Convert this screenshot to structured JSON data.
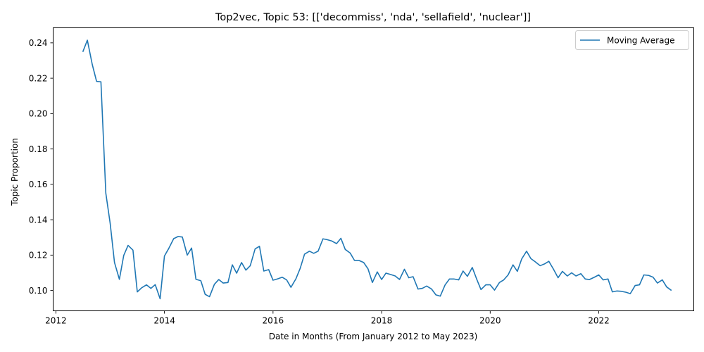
{
  "chart_data": {
    "type": "line",
    "title": "Top2vec, Topic 53: [['decommiss', 'nda', 'sellafield', 'nuclear']]",
    "xlabel": "Date in Months (From January 2012 to May 2023)",
    "ylabel": "Topic Proportion",
    "xlim": [
      2011.95,
      2023.75
    ],
    "ylim": [
      0.0885,
      0.2485
    ],
    "x_ticks": [
      2012,
      2014,
      2016,
      2018,
      2020,
      2022
    ],
    "x_tick_labels": [
      "2012",
      "2014",
      "2016",
      "2018",
      "2020",
      "2022"
    ],
    "y_ticks": [
      0.1,
      0.12,
      0.14,
      0.16,
      0.18,
      0.2,
      0.22,
      0.24
    ],
    "y_tick_labels": [
      "0.10",
      "0.12",
      "0.14",
      "0.16",
      "0.18",
      "0.20",
      "0.22",
      "0.24"
    ],
    "grid": false,
    "legend": {
      "position": "top-right",
      "entries": [
        "Moving Average"
      ]
    },
    "series": [
      {
        "name": "Moving Average",
        "color": "#1f77b4",
        "x": [
          2012.5,
          2012.58,
          2012.67,
          2012.75,
          2012.83,
          2012.92,
          2013.0,
          2013.08,
          2013.17,
          2013.25,
          2013.33,
          2013.42,
          2013.5,
          2013.58,
          2013.67,
          2013.75,
          2013.83,
          2013.92,
          2014.0,
          2014.08,
          2014.17,
          2014.25,
          2014.33,
          2014.42,
          2014.5,
          2014.58,
          2014.67,
          2014.75,
          2014.83,
          2014.92,
          2015.0,
          2015.08,
          2015.17,
          2015.25,
          2015.33,
          2015.42,
          2015.5,
          2015.58,
          2015.67,
          2015.75,
          2015.83,
          2015.92,
          2016.0,
          2016.08,
          2016.17,
          2016.25,
          2016.33,
          2016.42,
          2016.5,
          2016.58,
          2016.67,
          2016.75,
          2016.83,
          2016.92,
          2017.0,
          2017.08,
          2017.17,
          2017.25,
          2017.33,
          2017.42,
          2017.5,
          2017.58,
          2017.67,
          2017.75,
          2017.83,
          2017.92,
          2018.0,
          2018.08,
          2018.17,
          2018.25,
          2018.33,
          2018.42,
          2018.5,
          2018.58,
          2018.67,
          2018.75,
          2018.83,
          2018.92,
          2019.0,
          2019.08,
          2019.17,
          2019.25,
          2019.33,
          2019.42,
          2019.5,
          2019.58,
          2019.67,
          2019.75,
          2019.83,
          2019.92,
          2020.0,
          2020.08,
          2020.17,
          2020.25,
          2020.33,
          2020.42,
          2020.5,
          2020.58,
          2020.67,
          2020.75,
          2020.83,
          2020.92,
          2021.0,
          2021.08,
          2021.17,
          2021.25,
          2021.33,
          2021.42,
          2021.5,
          2021.58,
          2021.67,
          2021.75,
          2021.83,
          2021.92,
          2022.0,
          2022.08,
          2022.17,
          2022.25,
          2022.33,
          2022.42,
          2022.5,
          2022.58,
          2022.67,
          2022.75,
          2022.83,
          2022.92,
          2023.0,
          2023.08,
          2023.17,
          2023.25,
          2023.33
        ],
        "values": [
          0.2352,
          0.2415,
          0.2278,
          0.2182,
          0.218,
          0.155,
          0.138,
          0.1158,
          0.1063,
          0.1198,
          0.1255,
          0.1228,
          0.0992,
          0.1015,
          0.1032,
          0.1012,
          0.1033,
          0.0953,
          0.1195,
          0.1238,
          0.1293,
          0.1305,
          0.1302,
          0.12,
          0.124,
          0.1063,
          0.1055,
          0.0978,
          0.0965,
          0.1035,
          0.1062,
          0.1042,
          0.1045,
          0.1145,
          0.1098,
          0.1158,
          0.1115,
          0.114,
          0.1235,
          0.125,
          0.111,
          0.1118,
          0.1058,
          0.1065,
          0.1075,
          0.106,
          0.1018,
          0.1065,
          0.1125,
          0.1205,
          0.1222,
          0.121,
          0.1222,
          0.1292,
          0.1287,
          0.128,
          0.1265,
          0.1295,
          0.1232,
          0.1212,
          0.117,
          0.117,
          0.1158,
          0.1122,
          0.1045,
          0.1105,
          0.1062,
          0.1098,
          0.109,
          0.1082,
          0.1062,
          0.112,
          0.1072,
          0.1078,
          0.1008,
          0.1012,
          0.1025,
          0.1008,
          0.0975,
          0.0968,
          0.1032,
          0.1065,
          0.1065,
          0.106,
          0.111,
          0.108,
          0.113,
          0.1065,
          0.1005,
          0.1032,
          0.1032,
          0.1002,
          0.1045,
          0.106,
          0.1088,
          0.1145,
          0.1108,
          0.1178,
          0.1222,
          0.118,
          0.1162,
          0.114,
          0.115,
          0.1165,
          0.1118,
          0.1072,
          0.1108,
          0.1082,
          0.11,
          0.1082,
          0.1095,
          0.1065,
          0.1062,
          0.1075,
          0.1088,
          0.106,
          0.1065,
          0.0992,
          0.0997,
          0.0995,
          0.099,
          0.0982,
          0.1028,
          0.1032,
          0.1088,
          0.1085,
          0.1075,
          0.1042,
          0.106,
          0.102,
          0.1002
        ]
      }
    ]
  }
}
